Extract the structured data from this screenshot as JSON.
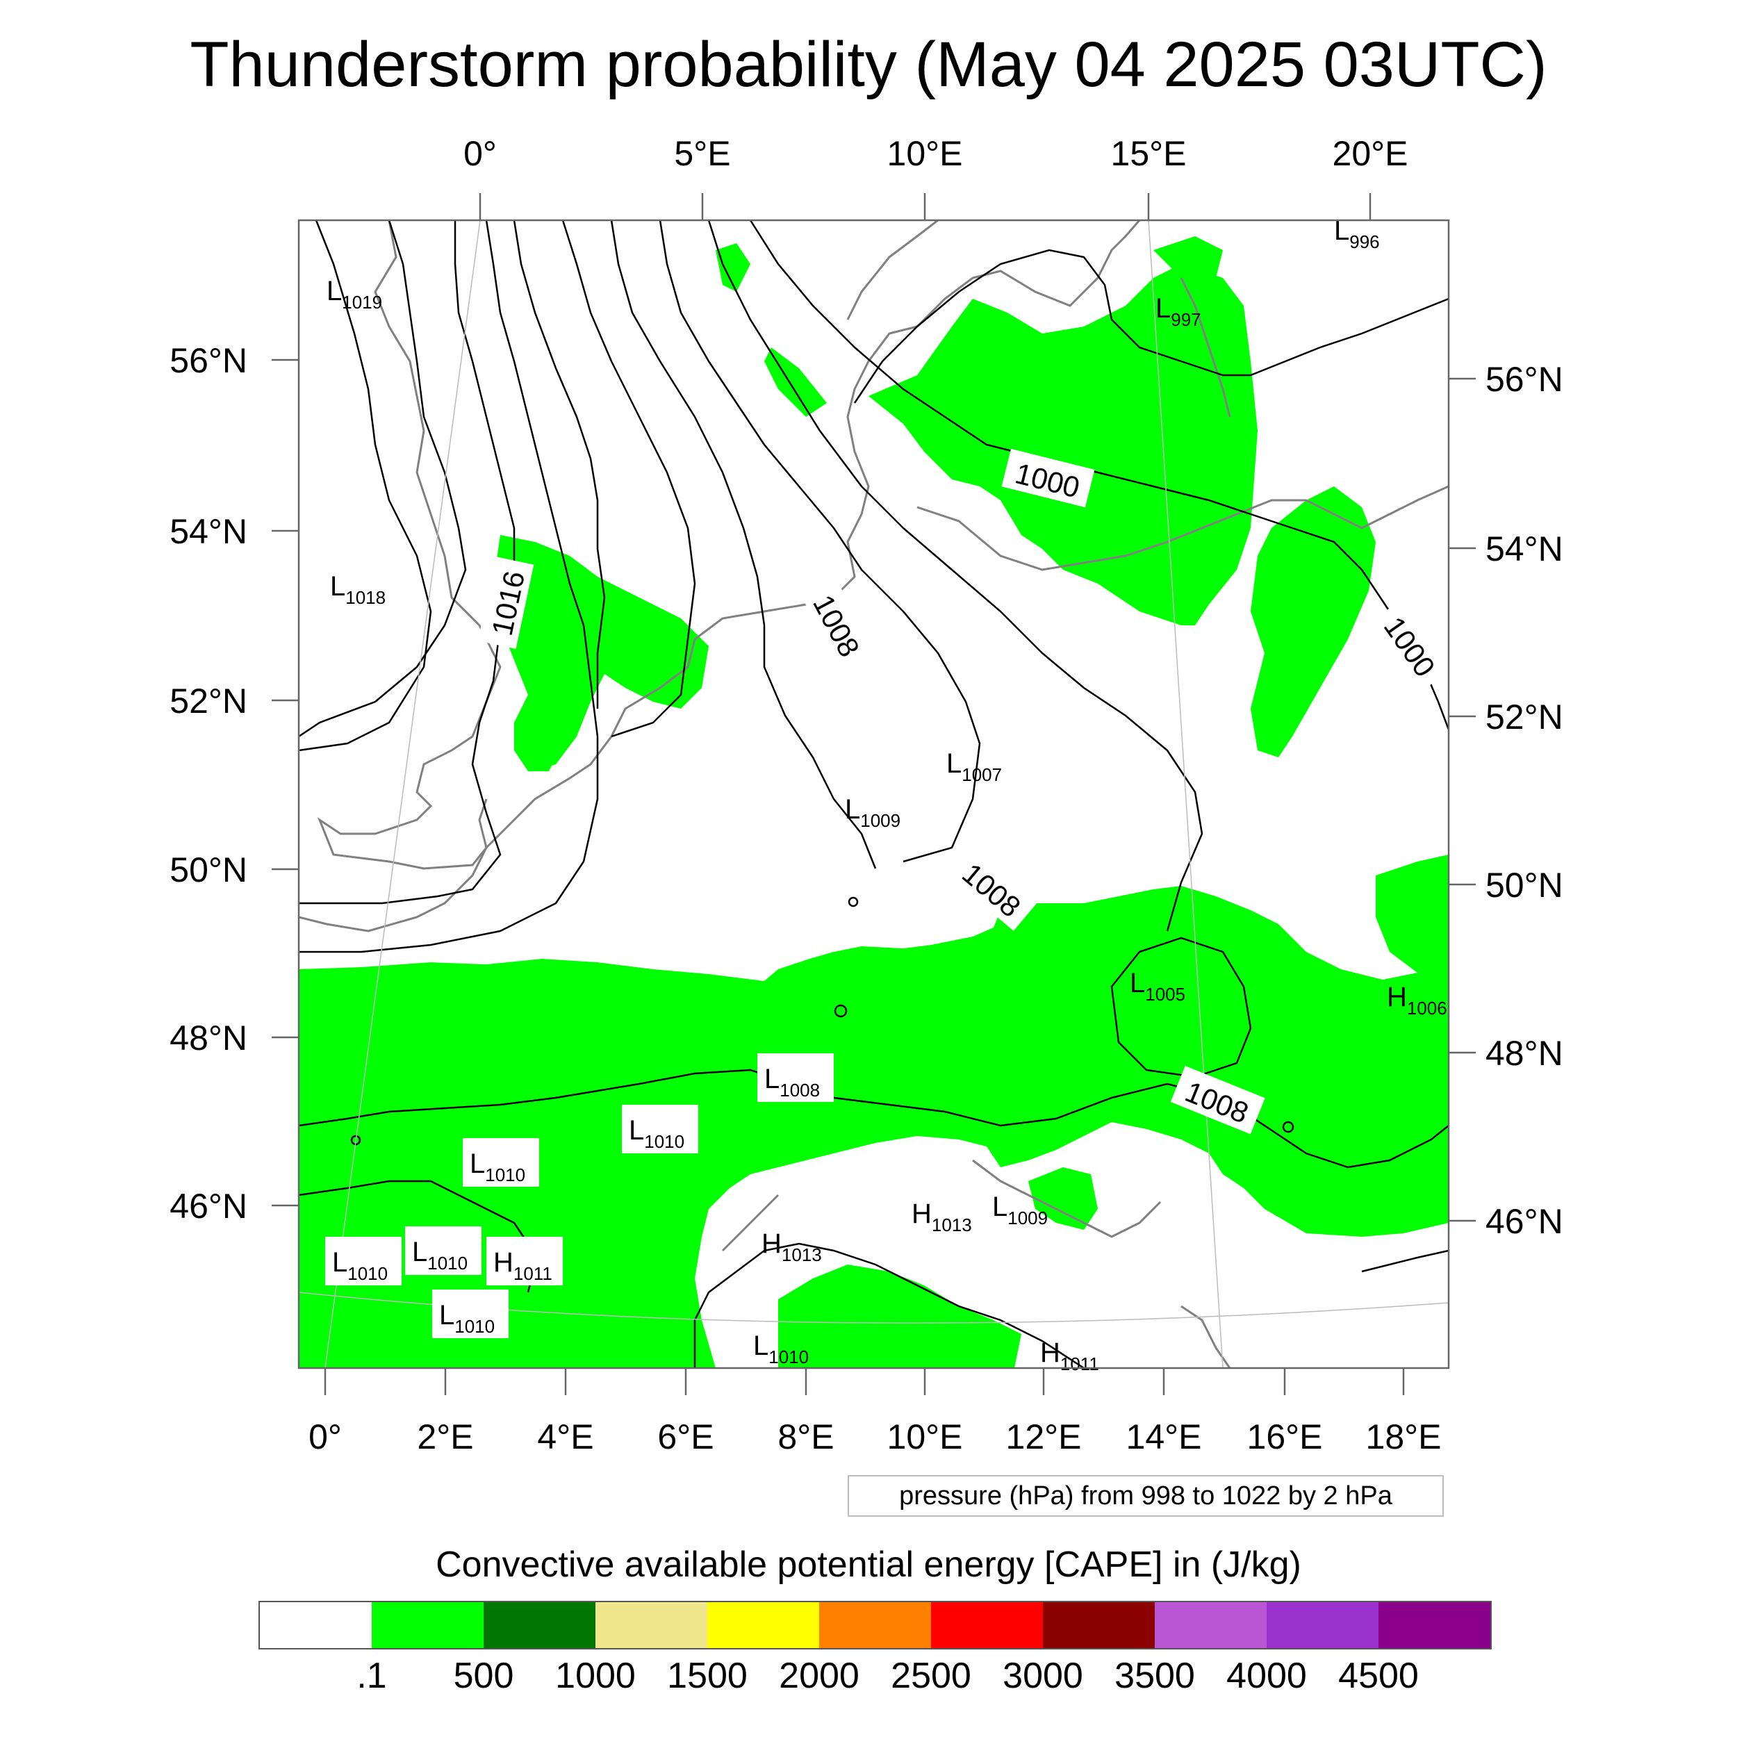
{
  "title": "Thunderstorm probability (May 04 2025 03UTC)",
  "map": {
    "top_lon_labels": [
      "0°",
      "5°E",
      "10°E",
      "15°E",
      "20°E"
    ],
    "bottom_lon_labels": [
      "0°",
      "2°E",
      "4°E",
      "6°E",
      "8°E",
      "10°E",
      "12°E",
      "14°E",
      "16°E",
      "18°E"
    ],
    "left_lat_labels": [
      "56°N",
      "54°N",
      "52°N",
      "50°N",
      "48°N",
      "46°N"
    ],
    "right_lat_labels": [
      "56°N",
      "54°N",
      "52°N",
      "50°N",
      "48°N",
      "46°N"
    ],
    "contour_labels": [
      "1016",
      "1008",
      "1000",
      "1000",
      "1008",
      "1008"
    ],
    "pressure_centers": [
      {
        "type": "L",
        "value": "996"
      },
      {
        "type": "L",
        "value": "997"
      },
      {
        "type": "L",
        "value": "1019"
      },
      {
        "type": "L",
        "value": "1018"
      },
      {
        "type": "L",
        "value": "1007"
      },
      {
        "type": "L",
        "value": "1009"
      },
      {
        "type": "L",
        "value": "1005"
      },
      {
        "type": "H",
        "value": "1006"
      },
      {
        "type": "L",
        "value": "1008"
      },
      {
        "type": "L",
        "value": "1010"
      },
      {
        "type": "L",
        "value": "1010"
      },
      {
        "type": "L",
        "value": "1010"
      },
      {
        "type": "H",
        "value": "1011"
      },
      {
        "type": "L",
        "value": "1010"
      },
      {
        "type": "L",
        "value": "1010"
      },
      {
        "type": "H",
        "value": "1013"
      },
      {
        "type": "H",
        "value": "1013"
      },
      {
        "type": "L",
        "value": "1009"
      },
      {
        "type": "L",
        "value": "1010"
      },
      {
        "type": "H",
        "value": "1011"
      }
    ],
    "colors": {
      "cape_fill": "#00ff00",
      "isobar": "#000000",
      "coastline": "#808080",
      "frame": "#666666"
    }
  },
  "pressure_note": "pressure (hPa) from 998 to 1022 by 2 hPa",
  "colorbar": {
    "title": "Convective available potential energy [CAPE] in (J/kg)",
    "colors": [
      "#ffffff",
      "#00ff00",
      "#007800",
      "#f0e68c",
      "#ffff00",
      "#ff7f00",
      "#ff0000",
      "#8b0000",
      "#ba55d3",
      "#9932cc",
      "#8b008b"
    ],
    "labels": [
      ".1",
      "500",
      "1000",
      "1500",
      "2000",
      "2500",
      "3000",
      "3500",
      "4000",
      "4500"
    ]
  }
}
